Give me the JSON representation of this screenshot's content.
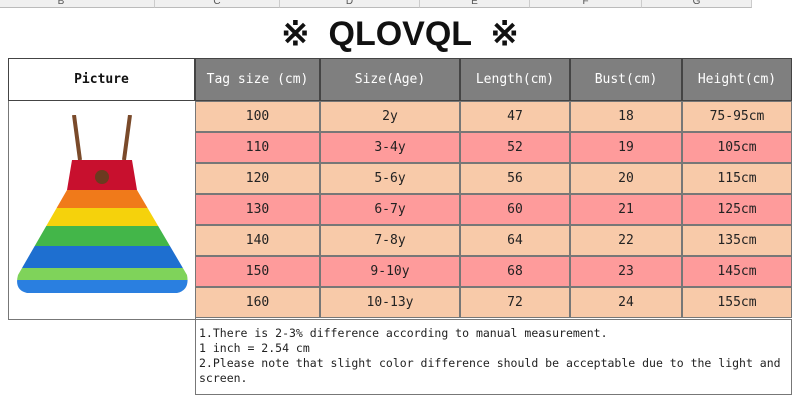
{
  "column_letters": [
    "B",
    "C",
    "D",
    "E",
    "F",
    "G"
  ],
  "title": "※  QLOVQL  ※",
  "table": {
    "header": [
      "Picture",
      "Tag size (cm)",
      "Size(Age)",
      "Length(cm)",
      "Bust(cm)",
      "Height(cm)"
    ],
    "rows": [
      [
        "100",
        "2y",
        "47",
        "18",
        "75-95cm"
      ],
      [
        "110",
        "3-4y",
        "52",
        "19",
        "105cm"
      ],
      [
        "120",
        "5-6y",
        "56",
        "20",
        "115cm"
      ],
      [
        "130",
        "6-7y",
        "60",
        "21",
        "125cm"
      ],
      [
        "140",
        "7-8y",
        "64",
        "22",
        "135cm"
      ],
      [
        "150",
        "9-10y",
        "68",
        "23",
        "145cm"
      ],
      [
        "160",
        "10-13y",
        "72",
        "24",
        "155cm"
      ]
    ]
  },
  "notes": [
    "1.There is 2-3% difference according to manual measurement.",
    "1 inch = 2.54 cm",
    "2.Please note that slight color difference should be acceptable due to the light and screen."
  ]
}
